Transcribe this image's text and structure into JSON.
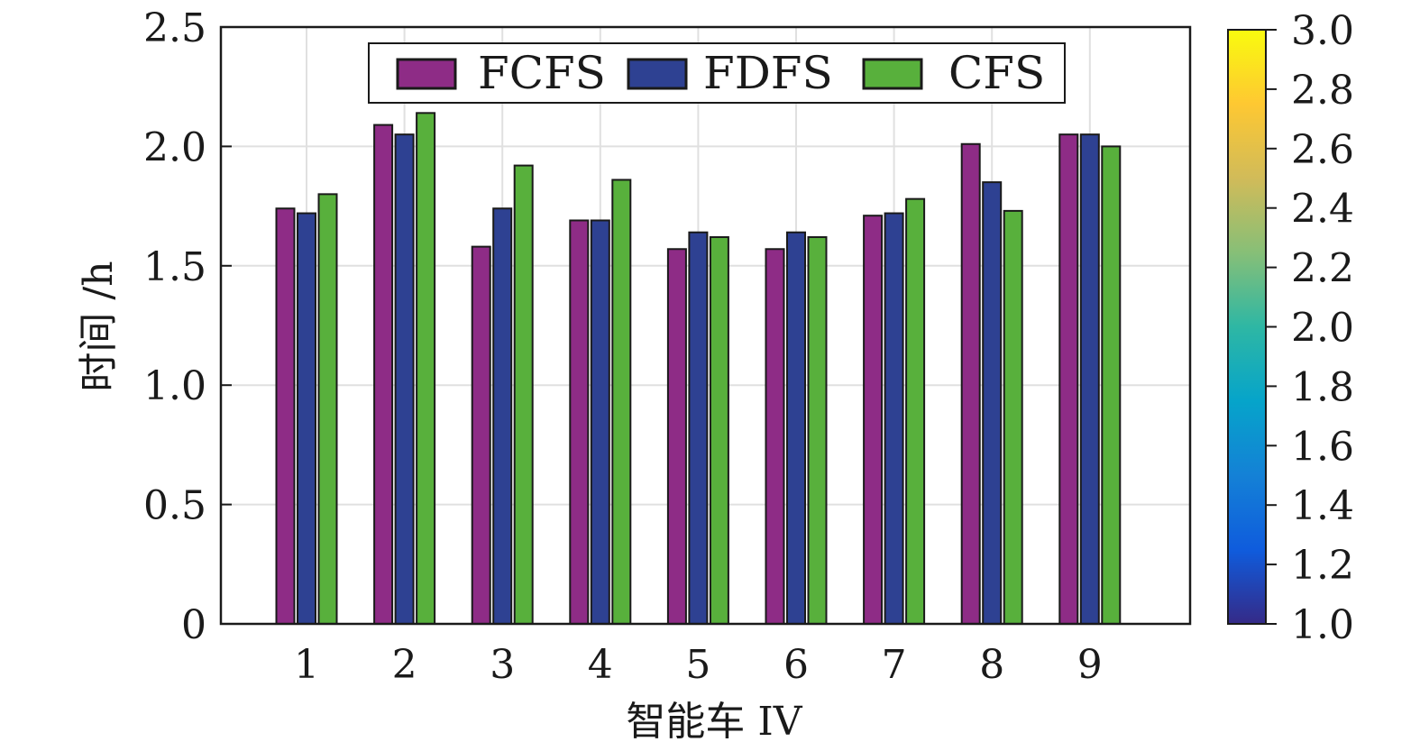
{
  "chart_data": {
    "type": "bar",
    "categories": [
      "1",
      "2",
      "3",
      "4",
      "5",
      "6",
      "7",
      "8",
      "9"
    ],
    "series": [
      {
        "name": "FCFS",
        "color": "#8e2c86",
        "values": [
          1.74,
          2.09,
          1.58,
          1.69,
          1.57,
          1.57,
          1.71,
          2.01,
          2.05
        ]
      },
      {
        "name": "FDFS",
        "color": "#2e4192",
        "values": [
          1.72,
          2.05,
          1.74,
          1.69,
          1.64,
          1.64,
          1.72,
          1.85,
          2.05
        ]
      },
      {
        "name": "CFS",
        "color": "#58b03c",
        "values": [
          1.8,
          2.14,
          1.92,
          1.86,
          1.62,
          1.62,
          1.78,
          1.73,
          2.0
        ]
      }
    ],
    "ylim": [
      0,
      2.5
    ],
    "yticks": [
      "0",
      "0.5",
      "1.0",
      "1.5",
      "2.0",
      "2.5"
    ],
    "xlabel": "智能车 IV",
    "ylabel": "时间 /h",
    "grid": true,
    "legend_position": "top",
    "colorbar": {
      "range": [
        1.0,
        3.0
      ],
      "ticks": [
        "1.0",
        "1.2",
        "1.4",
        "1.6",
        "1.8",
        "2.0",
        "2.2",
        "2.4",
        "2.6",
        "2.8",
        "3.0"
      ],
      "colors": [
        "#352a87",
        "#0f5cdd",
        "#1481d6",
        "#06a4ca",
        "#2eb7a4",
        "#87bf77",
        "#d1bb59",
        "#fec832",
        "#f9fb0e"
      ]
    }
  }
}
